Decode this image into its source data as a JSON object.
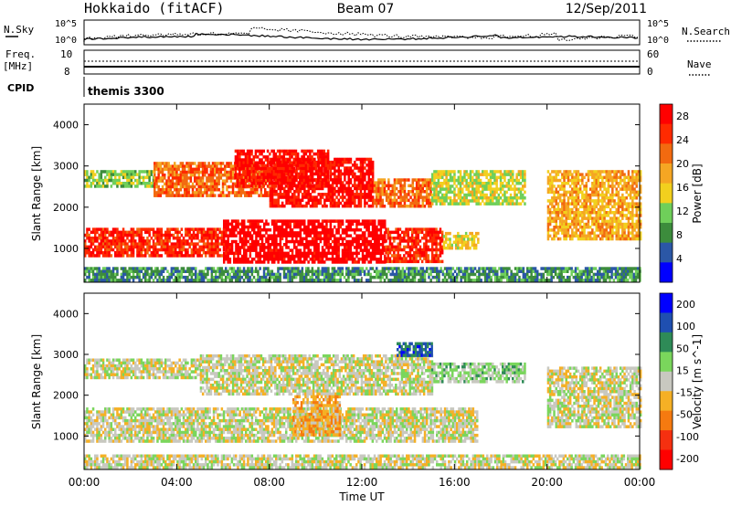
{
  "header": {
    "station": "Hokkaido (fitACF)",
    "beam": "Beam 07",
    "date": "12/Sep/2011"
  },
  "status_panel": {
    "nsky_label": "N.Sky",
    "nsearch_label": "N.Search",
    "left_ticks": [
      "10^5",
      "10^0"
    ],
    "right_ticks": [
      "10^5",
      "10^0"
    ],
    "freq_label": "Freq.",
    "freq_unit": "[MHz]",
    "freq_ticks": [
      "10",
      "8"
    ],
    "nave_label": "Nave",
    "nave_ticks": [
      "60",
      "0"
    ],
    "cpid_label": "CPID",
    "cpid_value": "themis 3300"
  },
  "colors": {
    "power_scale": [
      "#0000ff",
      "#2b57a6",
      "#3c8c3c",
      "#6fcf5a",
      "#f2d01e",
      "#f5a623",
      "#f26a10",
      "#ff2a00",
      "#ff0000"
    ],
    "velocity_scale": [
      "#0000ff",
      "#1f4fb0",
      "#2e8b57",
      "#7ad65c",
      "#c8c8c0",
      "#f5b025",
      "#f57a10",
      "#f53010",
      "#ff0000"
    ]
  },
  "chart_data": [
    {
      "type": "heatmap",
      "parameter": "power",
      "ylabel": "Slant Range [km]",
      "yticks": [
        1000,
        2000,
        3000,
        4000
      ],
      "ylim": [
        180,
        4500
      ],
      "xlim": [
        0,
        24
      ],
      "colorbar": {
        "label": "Power [dB]",
        "ticks": [
          4,
          8,
          12,
          16,
          20,
          24,
          28
        ],
        "range": [
          0,
          30
        ]
      },
      "echo_bands": [
        {
          "t": [
            0,
            24
          ],
          "r": [
            200,
            550
          ],
          "value": 8
        },
        {
          "t": [
            0,
            6
          ],
          "r": [
            850,
            1500
          ],
          "value": 26
        },
        {
          "t": [
            6,
            13
          ],
          "r": [
            700,
            1700
          ],
          "value": 30
        },
        {
          "t": [
            13,
            15.5
          ],
          "r": [
            700,
            1500
          ],
          "value": 26
        },
        {
          "t": [
            15.5,
            17
          ],
          "r": [
            1000,
            1400
          ],
          "value": 16
        },
        {
          "t": [
            0,
            3
          ],
          "r": [
            2500,
            2900
          ],
          "value": 12
        },
        {
          "t": [
            3,
            8
          ],
          "r": [
            2300,
            3100
          ],
          "value": 22
        },
        {
          "t": [
            8,
            12.5
          ],
          "r": [
            2000,
            3200
          ],
          "value": 28
        },
        {
          "t": [
            12.5,
            15
          ],
          "r": [
            2000,
            2700
          ],
          "value": 22
        },
        {
          "t": [
            15,
            19
          ],
          "r": [
            2100,
            2900
          ],
          "value": 14
        },
        {
          "t": [
            20,
            24
          ],
          "r": [
            1200,
            2900
          ],
          "value": 18
        },
        {
          "t": [
            6.5,
            10.5
          ],
          "r": [
            2500,
            3400
          ],
          "value": 28
        }
      ]
    },
    {
      "type": "heatmap",
      "parameter": "velocity",
      "ylabel": "Slant Range [km]",
      "yticks": [
        1000,
        2000,
        3000,
        4000
      ],
      "ylim": [
        180,
        4500
      ],
      "xlim": [
        0,
        24
      ],
      "xticks": [
        "00:00",
        "04:00",
        "08:00",
        "12:00",
        "16:00",
        "20:00",
        "00:00"
      ],
      "xlabel": "Time UT",
      "colorbar": {
        "label": "Velocity [m s^-1]",
        "ticks": [
          200,
          100,
          50,
          15,
          -15,
          -50,
          -100,
          -200
        ],
        "range": [
          -250,
          250
        ]
      },
      "echo_bands": [
        {
          "t": [
            0,
            24
          ],
          "r": [
            200,
            550
          ],
          "value": 0
        },
        {
          "t": [
            0,
            17
          ],
          "r": [
            850,
            1700
          ],
          "value": 0
        },
        {
          "t": [
            0,
            5
          ],
          "r": [
            2400,
            2900
          ],
          "value": 0
        },
        {
          "t": [
            5,
            15
          ],
          "r": [
            2000,
            3000
          ],
          "value": 0
        },
        {
          "t": [
            9,
            11
          ],
          "r": [
            1000,
            2000
          ],
          "value": -60
        },
        {
          "t": [
            13.5,
            15
          ],
          "r": [
            3000,
            3300
          ],
          "value": 150
        },
        {
          "t": [
            15,
            19
          ],
          "r": [
            2300,
            2800
          ],
          "value": 40
        },
        {
          "t": [
            20,
            24
          ],
          "r": [
            1200,
            2700
          ],
          "value": 0
        }
      ]
    }
  ]
}
